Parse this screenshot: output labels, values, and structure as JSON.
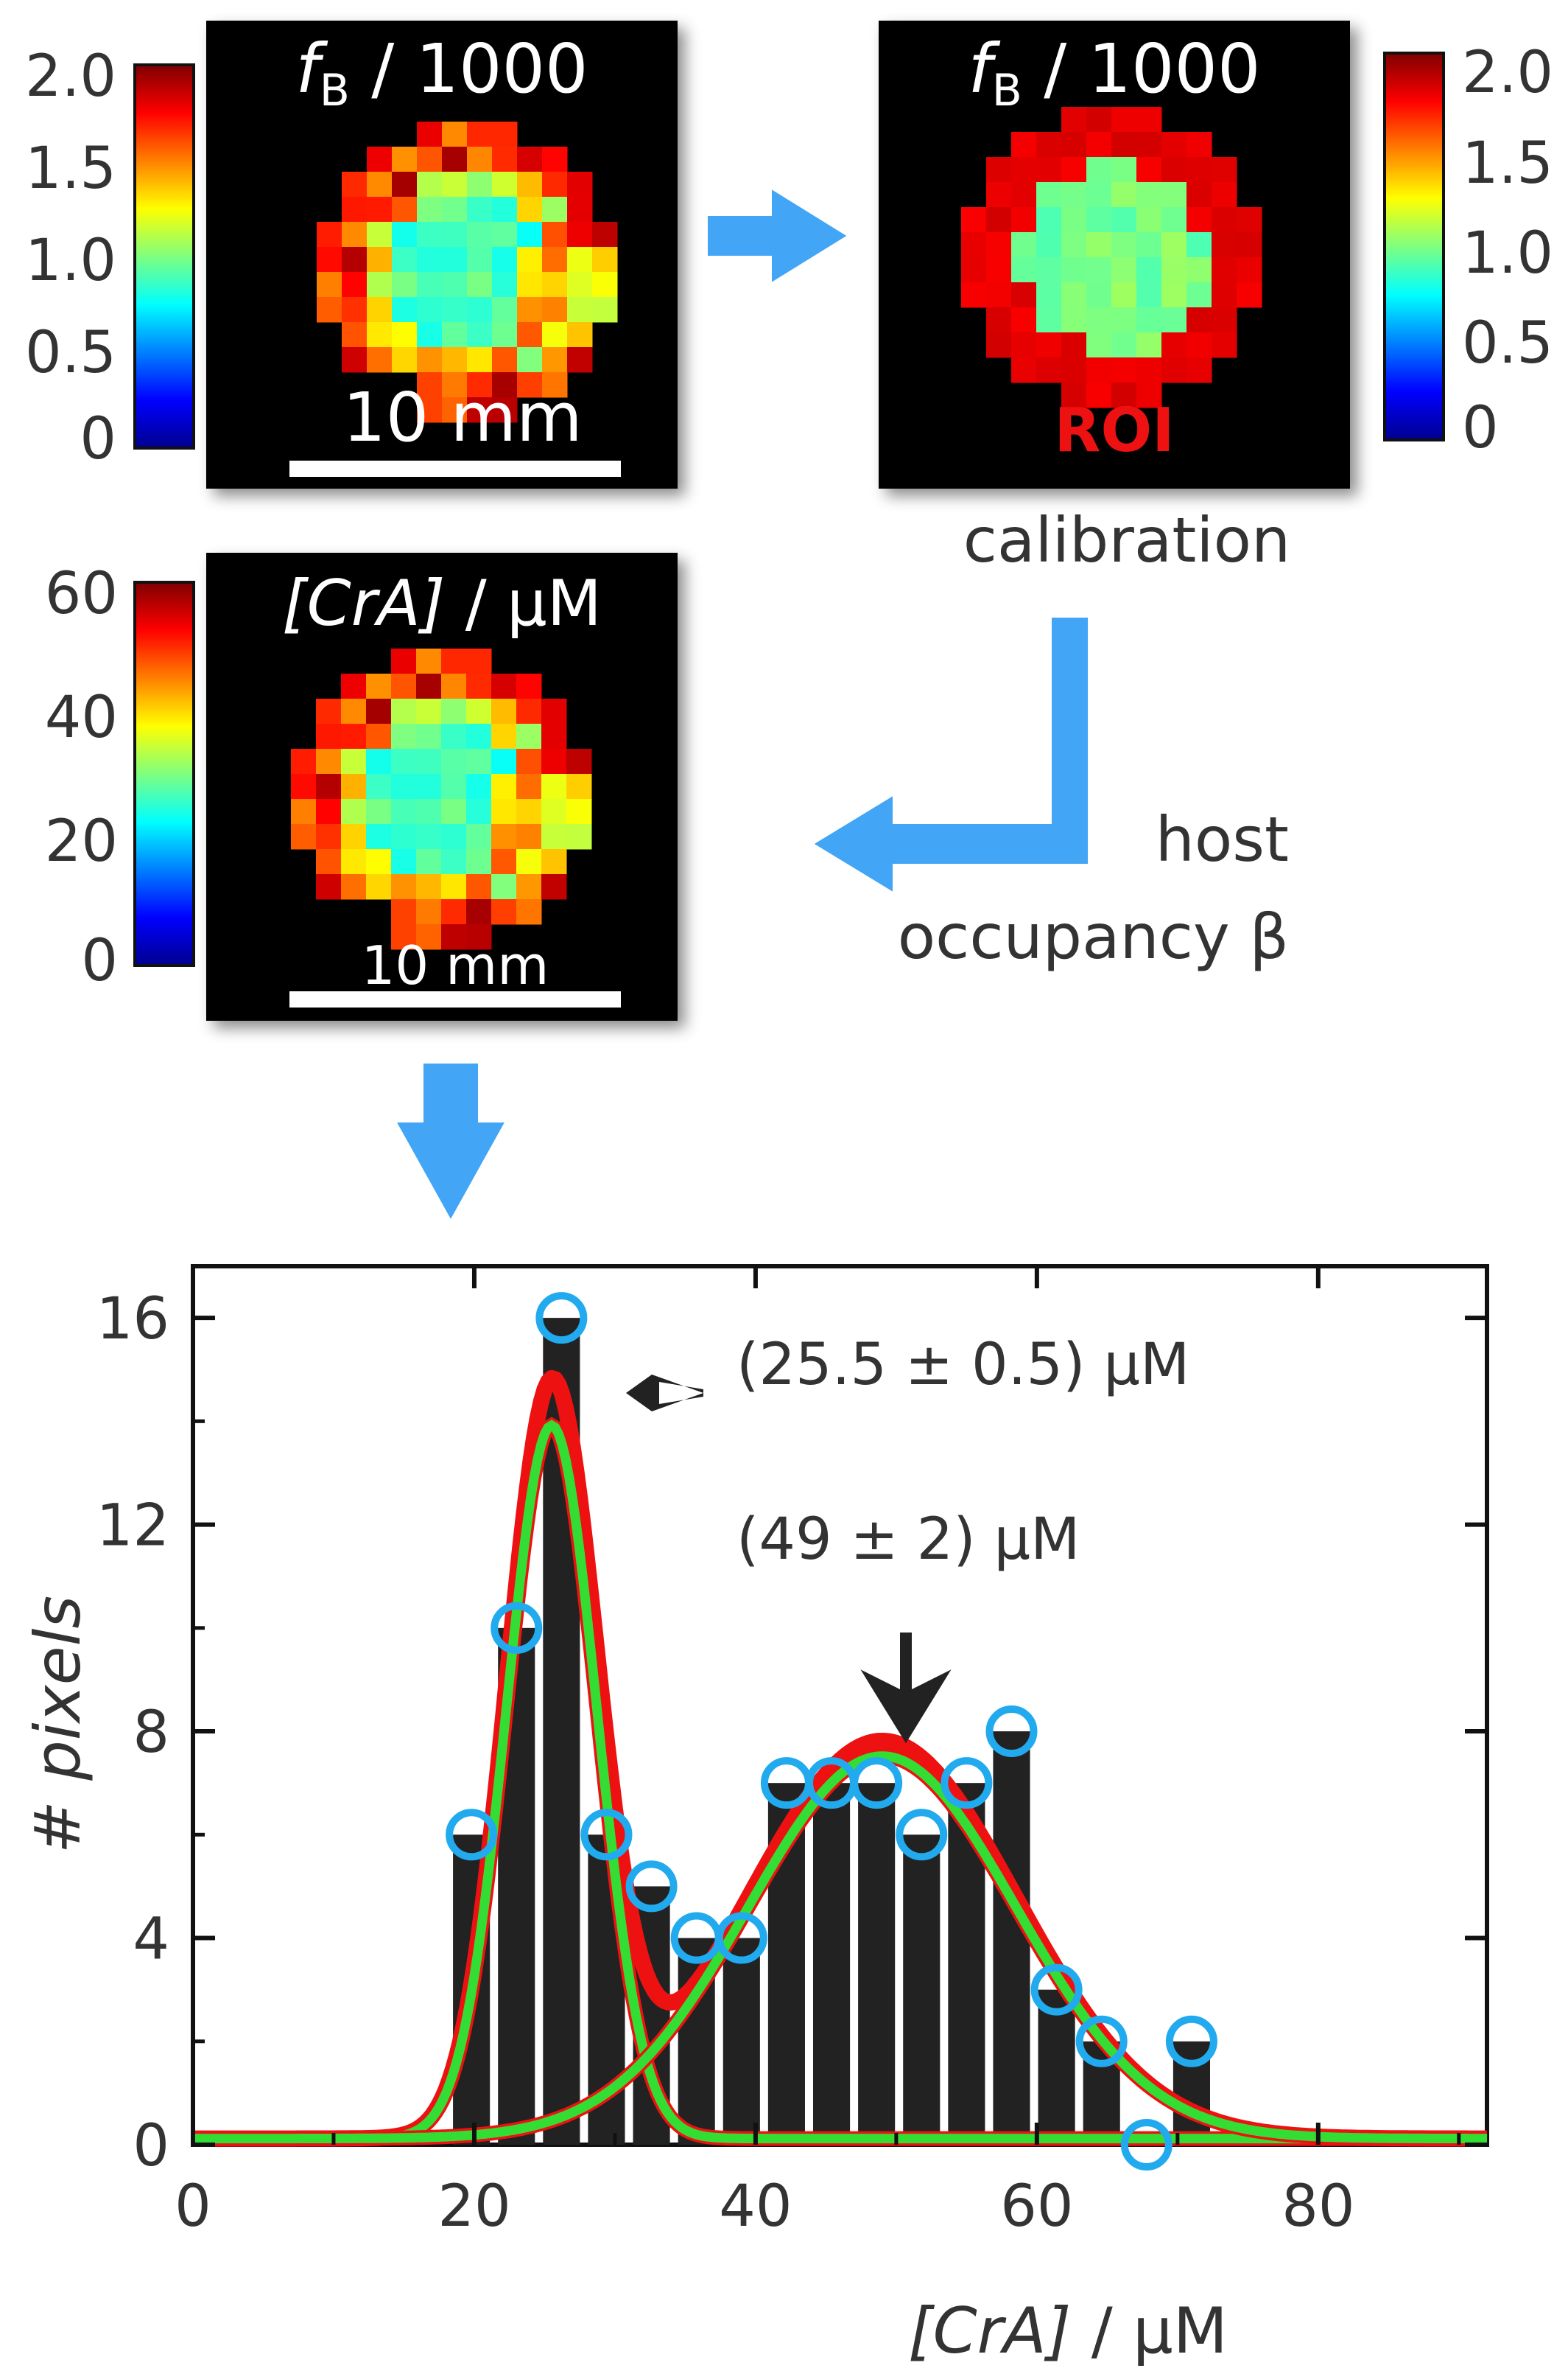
{
  "panel_fb_raw": {
    "title_var": "f",
    "title_sub": "B",
    "title_rest": " / 1000",
    "scalebar_label": "10 mm",
    "colorbar_ticks": [
      "2.0",
      "1.5",
      "1.0",
      "0.5",
      "0"
    ]
  },
  "panel_fb_roi": {
    "title_var": "f",
    "title_sub": "B",
    "title_rest": " / 1000",
    "roi_label": "ROI",
    "caption": "calibration",
    "colorbar_ticks": [
      "2.0",
      "1.5",
      "1.0",
      "0.5",
      "0"
    ]
  },
  "panel_cra": {
    "title_italic": "[CrA]",
    "title_rest": " / µM",
    "scalebar_label": "10 mm",
    "colorbar_ticks": [
      "60",
      "40",
      "20",
      "0"
    ]
  },
  "step_label": {
    "line1": "host",
    "line2": "occupancy β"
  },
  "colors": {
    "arrow_blue": "#42a5f5",
    "fit_total": "#ee1111",
    "fit_component": "#33dd33",
    "circle": "#22aaee",
    "bar": "#222222"
  },
  "chart_data": {
    "type": "bar",
    "xlabel_italic": "[CrA]",
    "xlabel_rest": " / µM",
    "ylabel": "# pixels",
    "xlim": [
      0,
      92
    ],
    "ylim": [
      0,
      17
    ],
    "xticks": [
      0,
      20,
      40,
      60,
      80
    ],
    "yticks": [
      0,
      4,
      8,
      12,
      16
    ],
    "bins": [
      {
        "x": 19.8,
        "count": 6
      },
      {
        "x": 23.0,
        "count": 10
      },
      {
        "x": 26.2,
        "count": 16
      },
      {
        "x": 29.4,
        "count": 6
      },
      {
        "x": 32.6,
        "count": 5
      },
      {
        "x": 35.8,
        "count": 4
      },
      {
        "x": 39.0,
        "count": 4
      },
      {
        "x": 42.2,
        "count": 7
      },
      {
        "x": 45.4,
        "count": 7
      },
      {
        "x": 48.6,
        "count": 7
      },
      {
        "x": 51.8,
        "count": 6
      },
      {
        "x": 55.0,
        "count": 7
      },
      {
        "x": 58.2,
        "count": 8
      },
      {
        "x": 61.4,
        "count": 3
      },
      {
        "x": 64.6,
        "count": 2
      },
      {
        "x": 67.8,
        "count": 0
      },
      {
        "x": 71.0,
        "count": 2
      }
    ],
    "bin_width": 3.2,
    "fit_components": [
      {
        "center": 25.5,
        "amplitude": 13.8,
        "sigma": 3.2
      },
      {
        "center": 49,
        "amplitude": 7.4,
        "sigma": 9.5
      }
    ],
    "annotations": [
      {
        "text": "(25.5 ± 0.5) µM",
        "x": 25.5
      },
      {
        "text": "(49 ± 2) µM",
        "x": 49
      }
    ]
  }
}
